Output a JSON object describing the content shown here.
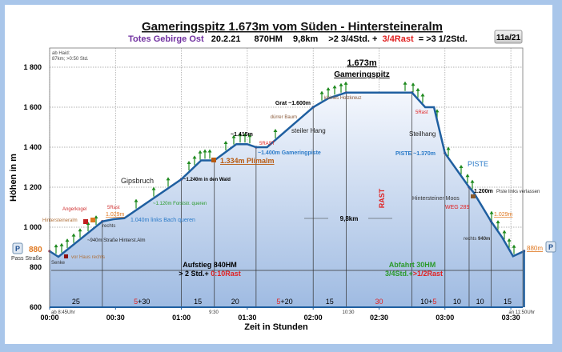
{
  "chart_data": {
    "type": "area",
    "title": "Gameringspitz 1.673m vom Süden -  Hintersteineralm",
    "subtitle": {
      "region": "Totes Gebirge Ost",
      "date": "20.2.21",
      "hm": "870HM",
      "distance": "9,8km",
      "time": ">2 3/4Std. +",
      "rest": "3/4Rast",
      "total": "= >3 1/2Std."
    },
    "badge": "11a/21",
    "xlabel": "Zeit in Stunden",
    "ylabel": "Höhen in m",
    "xticks": [
      "00:00",
      "00:30",
      "01:00",
      "01:30",
      "02:00",
      "02:30",
      "03:00",
      "03:30"
    ],
    "yticks": [
      600,
      800,
      1000,
      1200,
      1400,
      1600,
      1800
    ],
    "ytick_labels": [
      "600",
      "800",
      "1 000",
      "1 200",
      "1 400",
      "1 600",
      "1 800"
    ],
    "xlim": [
      "00:00",
      "03:40"
    ],
    "ylim": [
      600,
      1870
    ],
    "grid": true,
    "points": [
      {
        "t": "00:00",
        "h": 880
      },
      {
        "t": "00:04",
        "h": 852
      },
      {
        "t": "00:24",
        "h": 1029
      },
      {
        "t": "00:29",
        "h": 1040
      },
      {
        "t": "00:34",
        "h": 1045
      },
      {
        "t": "01:00",
        "h": 1240
      },
      {
        "t": "01:09",
        "h": 1334
      },
      {
        "t": "01:15",
        "h": 1334
      },
      {
        "t": "01:25",
        "h": 1415
      },
      {
        "t": "01:30",
        "h": 1415
      },
      {
        "t": "01:34",
        "h": 1400
      },
      {
        "t": "01:39",
        "h": 1400
      },
      {
        "t": "02:00",
        "h": 1600
      },
      {
        "t": "02:07",
        "h": 1645
      },
      {
        "t": "02:15",
        "h": 1673
      },
      {
        "t": "02:45",
        "h": 1673
      },
      {
        "t": "02:51",
        "h": 1600
      },
      {
        "t": "02:55",
        "h": 1600
      },
      {
        "t": "03:00",
        "h": 1370
      },
      {
        "t": "03:11",
        "h": 1200
      },
      {
        "t": "03:13",
        "h": 1175
      },
      {
        "t": "03:21",
        "h": 1029
      },
      {
        "t": "03:26",
        "h": 950
      },
      {
        "t": "03:31",
        "h": 855
      },
      {
        "t": "03:36",
        "h": 880
      }
    ],
    "segment_bounds": [
      "00:00",
      "00:24",
      "01:00",
      "01:15",
      "01:34",
      "02:00",
      "02:15",
      "02:45",
      "03:00",
      "03:11",
      "03:21",
      "03:36"
    ],
    "segments": [
      {
        "main": "25",
        "rest": ""
      },
      {
        "main": "+30",
        "rest": "5"
      },
      {
        "main": "15",
        "rest": ""
      },
      {
        "main": "20",
        "rest": ""
      },
      {
        "main": "+20",
        "rest": "5"
      },
      {
        "main": "15",
        "rest": ""
      },
      {
        "main": "",
        "rest": "30"
      },
      {
        "main": "10+",
        "rest": "5",
        "rest_after": true
      },
      {
        "main": "10",
        "rest": ""
      },
      {
        "main": "10",
        "rest": ""
      },
      {
        "main": "15",
        "rest": ""
      }
    ],
    "annotations": {
      "info_top": "ab Haid:",
      "info_top2": "87km; >0:50 Std.",
      "peak_height": "1.673m",
      "peak_name": "Gameringspitz",
      "grat": "Grat ~1.600m",
      "holzkreuz": "kleines Holzkreuz",
      "duerrer_baum": "dürrer Baum",
      "steiler_hang": "steiler Hang",
      "h1415": "~1.415m",
      "rast5_a": "5RAST",
      "gameringpiste": "~1.400m Gameringpiste",
      "plimalm": "1.334m Plimalm",
      "wald": "~1.240m in den Wald",
      "gipsbruch": "Gipsbruch",
      "forststr": "~1.120m Forststr. queren",
      "bach": "1.040m links Bach queren",
      "angerkogel": "Angerkogel",
      "rast5_b": "5Rast",
      "h1029": "1.029m",
      "hintersteineralm": "Hintersteineralm",
      "rechts": "rechts",
      "strasse": "~940m Straße Hinterst.Alm",
      "p880": "880",
      "pass_strasse": "Pass Straße",
      "senke": "Senke",
      "vor_haus": "vor Haus rechts",
      "aufstieg": "Aufstieg 840HM",
      "aufstieg_time": "> 2 Std.+ ",
      "aufstieg_rest": "0:10Rast",
      "start_time": "ab 8:45Uhr",
      "t930": "9:30",
      "t1030": "10:30",
      "end_time": "an 11:50Uhr",
      "distance": "9,8km",
      "rast_vertical": "RAST",
      "abfahrt": "Abfahrt 30HM",
      "abfahrt_time": "3/4Std.+",
      "abfahrt_rest": ">1/2Rast",
      "rast5_c": "5Rast",
      "steilhang": "Steilhang",
      "piste_1370": "PISTE ~1.370m",
      "piste": "PISTE",
      "h1200": "1.200m",
      "piste_verlassen": "Piste links verlassen",
      "moos": "Hintersteiner Moos",
      "weg": "WEG 289",
      "h1029_b": "1.029m",
      "rechts940": "rechts",
      "rechts940b": "940m",
      "p880_end": "880m",
      "parking": "P"
    },
    "colors": {
      "line": "#1f5fa0",
      "fill_top": "#f2f6fc",
      "fill_bottom": "#9db9e0",
      "rest": "#e02020",
      "purple": "#7030a0",
      "green": "#2a9a2a",
      "orange": "#e07820",
      "blue": "#2a7ac8"
    }
  }
}
